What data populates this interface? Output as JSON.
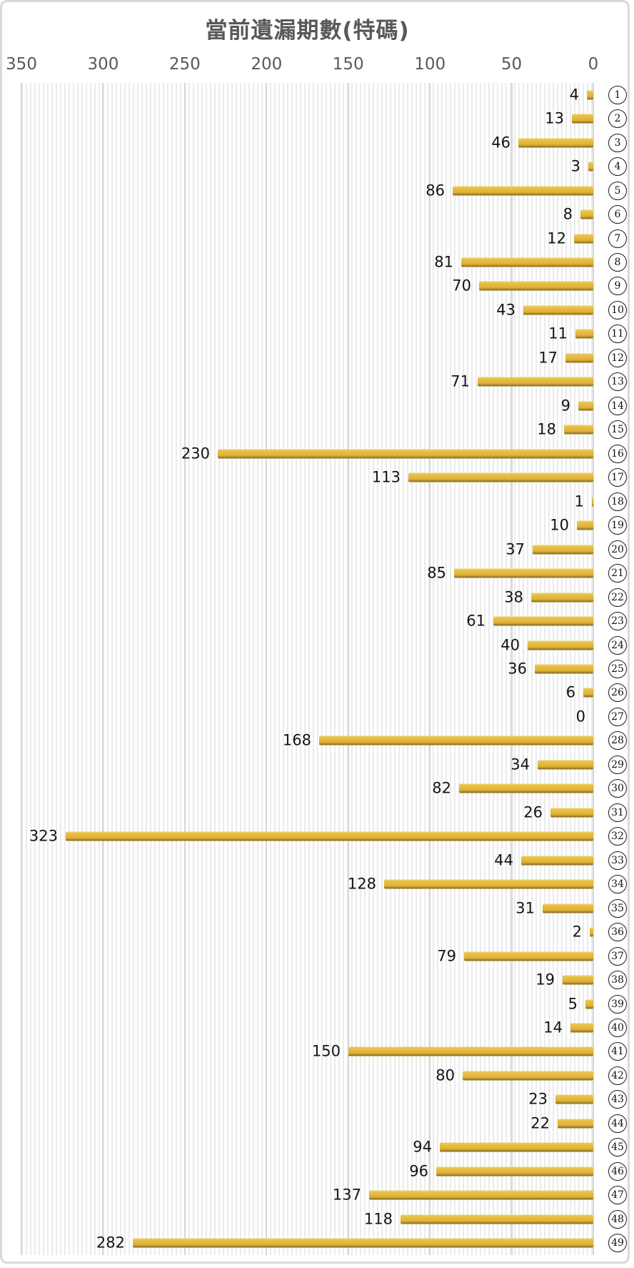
{
  "chart_data": {
    "type": "bar",
    "orientation": "horizontal",
    "title": "當前遺漏期數(特碼)",
    "categories": [
      1,
      2,
      3,
      4,
      5,
      6,
      7,
      8,
      9,
      10,
      11,
      12,
      13,
      14,
      15,
      16,
      17,
      18,
      19,
      20,
      21,
      22,
      23,
      24,
      25,
      26,
      27,
      28,
      29,
      30,
      31,
      32,
      33,
      34,
      35,
      36,
      37,
      38,
      39,
      40,
      41,
      42,
      43,
      44,
      45,
      46,
      47,
      48,
      49
    ],
    "category_style": "circled-number",
    "values": [
      4,
      13,
      46,
      3,
      86,
      8,
      12,
      81,
      70,
      43,
      11,
      17,
      71,
      9,
      18,
      230,
      113,
      1,
      10,
      37,
      85,
      38,
      61,
      40,
      36,
      6,
      0,
      168,
      34,
      82,
      26,
      323,
      44,
      128,
      31,
      2,
      79,
      19,
      5,
      14,
      150,
      80,
      23,
      22,
      94,
      96,
      137,
      118,
      282
    ],
    "value_labels_shown": true,
    "x_axis": {
      "position": "top",
      "reversed": true,
      "min": 0,
      "max": 350,
      "ticks": [
        350,
        300,
        250,
        200,
        150,
        100,
        50,
        0
      ]
    },
    "grid": true,
    "legend": "none",
    "colors": {
      "bar_main": "#e2b63c",
      "bar_highlight": "#f0d065",
      "bar_shadow": "#8d6e20",
      "title": "#595959",
      "axis_label": "#595959",
      "value_label": "#141414",
      "gridline": "#d6d6d6",
      "plot_stripe": "#ebebeb",
      "background": "#ffffff",
      "frame_border": "#d9d9d9"
    }
  }
}
